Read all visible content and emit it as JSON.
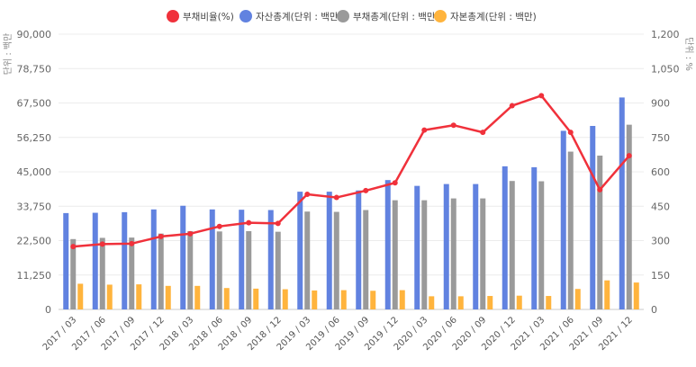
{
  "chart_data": {
    "type": "bar",
    "categories": [
      "2017 / 03",
      "2017 / 06",
      "2017 / 09",
      "2017 / 12",
      "2018 / 03",
      "2018 / 06",
      "2018 / 09",
      "2018 / 12",
      "2019 / 03",
      "2019 / 06",
      "2019 / 09",
      "2019 / 12",
      "2020 / 03",
      "2020 / 06",
      "2020 / 09",
      "2020 / 12",
      "2021 / 03",
      "2021 / 06",
      "2021 / 09",
      "2021 / 12"
    ],
    "legend": [
      {
        "name": "부채비율(%)",
        "color": "#f0313b",
        "marker": "circle"
      },
      {
        "name": "자산총계(단위 : 백만)",
        "color": "#6182e0",
        "marker": "circle"
      },
      {
        "name": "부채총계(단위 : 백만)",
        "color": "#9a9a9a",
        "marker": "circle"
      },
      {
        "name": "자본총계(단위 : 백만)",
        "color": "#ffb43d",
        "marker": "circle"
      }
    ],
    "series": [
      {
        "name": "자산총계(단위 : 백만)",
        "type": "bar",
        "axis": "left",
        "color": "#6182e0",
        "values": [
          31500,
          31600,
          31800,
          32700,
          33900,
          32700,
          32600,
          32500,
          38500,
          38500,
          38900,
          42300,
          40400,
          41000,
          41000,
          46800,
          46500,
          58400,
          60000,
          69300
        ]
      },
      {
        "name": "부채총계(단위 : 백만)",
        "type": "bar",
        "axis": "left",
        "color": "#9a9a9a",
        "values": [
          23000,
          23400,
          23500,
          24800,
          25600,
          25500,
          25600,
          25400,
          32000,
          31900,
          32500,
          35700,
          35700,
          36300,
          36300,
          42000,
          41900,
          51600,
          50300,
          60400
        ]
      },
      {
        "name": "자본총계(단위 : 백만)",
        "type": "bar",
        "axis": "left",
        "color": "#ffb43d",
        "values": [
          8400,
          8100,
          8200,
          7700,
          7700,
          7000,
          6800,
          6600,
          6200,
          6300,
          6100,
          6300,
          4300,
          4300,
          4400,
          4500,
          4400,
          6700,
          9500,
          8800
        ]
      },
      {
        "name": "부채비율(%)",
        "type": "line",
        "axis": "right",
        "color": "#f0313b",
        "values": [
          274,
          285,
          287,
          318,
          330,
          362,
          378,
          375,
          502,
          488,
          518,
          552,
          782,
          803,
          772,
          888,
          932,
          772,
          522,
          670
        ]
      }
    ],
    "left_axis": {
      "label": "단위 : 백만",
      "min": 0,
      "max": 90000,
      "ticks": [
        "0",
        "11,250",
        "22,500",
        "33,750",
        "45,000",
        "56,250",
        "67,500",
        "78,750",
        "90,000"
      ]
    },
    "right_axis": {
      "label": "단위 : %",
      "min": 0,
      "max": 1200,
      "ticks": [
        "0",
        "150",
        "300",
        "450",
        "600",
        "750",
        "900",
        "1,050",
        "1,200"
      ]
    },
    "grid": true,
    "legend_position": "top"
  }
}
